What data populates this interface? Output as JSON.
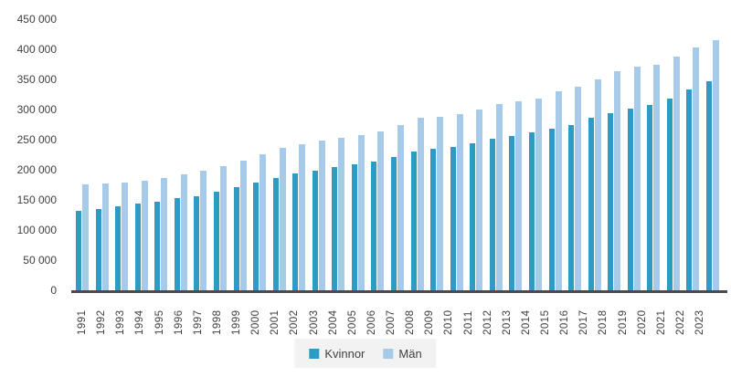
{
  "chart_data": {
    "type": "bar",
    "title": "",
    "xlabel": "",
    "ylabel": "",
    "grid": false,
    "legend_position": "bottom-center",
    "axis": {
      "ymin": 0,
      "ymax": 450000,
      "tick_step": 50000
    },
    "y_ticks": [
      {
        "value": 450000,
        "label": "450 000"
      },
      {
        "value": 400000,
        "label": "400 000"
      },
      {
        "value": 350000,
        "label": "350 000"
      },
      {
        "value": 300000,
        "label": "300 000"
      },
      {
        "value": 250000,
        "label": "250 000"
      },
      {
        "value": 200000,
        "label": "200 000"
      },
      {
        "value": 150000,
        "label": "150 000"
      },
      {
        "value": 100000,
        "label": "100 000"
      },
      {
        "value": 50000,
        "label": "50 000"
      },
      {
        "value": 0,
        "label": "0"
      }
    ],
    "categories": [
      "1991",
      "1992",
      "1993",
      "1994",
      "1995",
      "1996",
      "1997",
      "1998",
      "1999",
      "2000",
      "2001",
      "2002",
      "2003",
      "2004",
      "2005",
      "2006",
      "2007",
      "2008",
      "2009",
      "2010",
      "2011",
      "2012",
      "2013",
      "2014",
      "2015",
      "2016",
      "2017",
      "2018",
      "2019",
      "2020",
      "2021",
      "2022",
      "2023"
    ],
    "series": [
      {
        "name": "Kvinnor",
        "color": "#2e9ac6",
        "values": [
          131500,
          135500,
          139500,
          143500,
          147000,
          152500,
          156000,
          163500,
          171500,
          179000,
          187000,
          194000,
          198000,
          205000,
          209000,
          213500,
          221500,
          231000,
          235500,
          238000,
          244000,
          251500,
          256000,
          261500,
          268500,
          275000,
          286500,
          294500,
          301500,
          308000,
          319000,
          333500,
          347000
        ]
      },
      {
        "name": "Män",
        "color": "#a6cae9",
        "values": [
          176000,
          178000,
          179500,
          181500,
          186000,
          192500,
          198000,
          206500,
          214500,
          225500,
          236000,
          243000,
          249000,
          253500,
          258000,
          264000,
          275000,
          286500,
          287500,
          292000,
          300500,
          309000,
          313500,
          319000,
          330000,
          338000,
          349500,
          364000,
          371500,
          374500,
          387500,
          403500,
          415500
        ]
      }
    ],
    "colors": {
      "axis_line": "#4a4a4a",
      "tick_text": "#3f3f3f",
      "legend_background": "#f2f2f2",
      "background": "#ffffff"
    }
  }
}
